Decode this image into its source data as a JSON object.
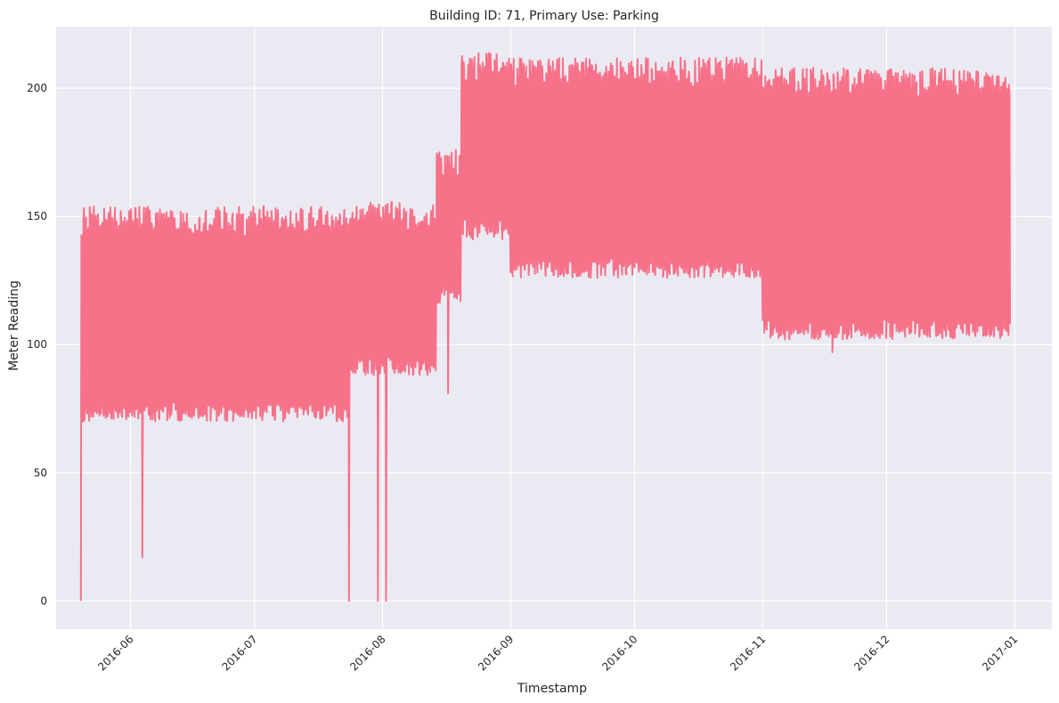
{
  "chart_data": {
    "type": "line",
    "title": "Building ID: 71, Primary Use: Parking",
    "xlabel": "Timestamp",
    "ylabel": "Meter Reading",
    "x_range": [
      "2016-05-14",
      "2017-01-10"
    ],
    "ylim": [
      -11,
      224
    ],
    "x_ticks": [
      "2016-06",
      "2016-07",
      "2016-08",
      "2016-09",
      "2016-10",
      "2016-11",
      "2016-12",
      "2017-01"
    ],
    "y_ticks": [
      0,
      50,
      100,
      150,
      200
    ],
    "grid": true,
    "legend": "none",
    "background": "#eaeaf2",
    "grid_color": "#ffffff",
    "series": [
      {
        "color": "#f77189",
        "x_start": "2016-05-20",
        "x_end": "2016-12-31",
        "segments": [
          {
            "from": "2016-05-21",
            "to": "2016-07-24",
            "low": 74,
            "high": 148
          },
          {
            "from": "2016-07-24",
            "to": "2016-08-14",
            "low": 92,
            "high": 150
          },
          {
            "from": "2016-08-14",
            "to": "2016-08-20",
            "low": 120,
            "high": 170
          },
          {
            "from": "2016-08-20",
            "to": "2016-09-01",
            "low": 145,
            "high": 208
          },
          {
            "from": "2016-09-01",
            "to": "2016-11-01",
            "low": 130,
            "high": 206
          },
          {
            "from": "2016-11-01",
            "to": "2016-12-31",
            "low": 106,
            "high": 202
          }
        ],
        "spikes_down": [
          {
            "x": "2016-05-20",
            "y": 0
          },
          {
            "x": "2016-06-04",
            "y": 17
          },
          {
            "x": "2016-07-24",
            "y": 0
          },
          {
            "x": "2016-07-31",
            "y": 0
          },
          {
            "x": "2016-08-02",
            "y": 0
          },
          {
            "x": "2016-08-17",
            "y": 81
          },
          {
            "x": "2016-11-18",
            "y": 97
          }
        ]
      }
    ]
  }
}
